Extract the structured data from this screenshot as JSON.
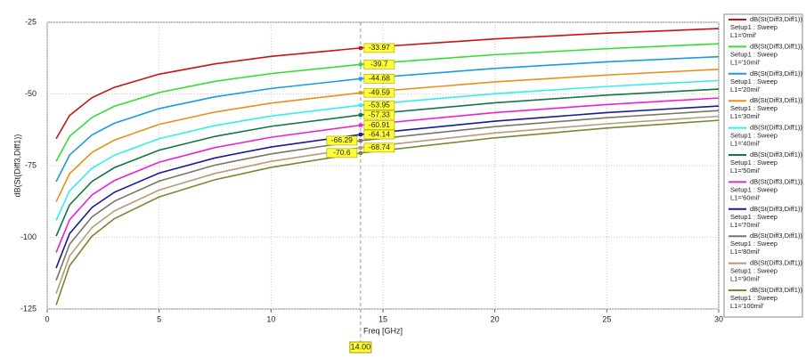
{
  "chart_data": {
    "type": "line",
    "x_label": "Freq [GHz]",
    "y_label": "dB(St(Diff3,Diff1))",
    "xlim": [
      0,
      30
    ],
    "xticks": [
      0,
      5,
      10,
      15,
      20,
      25,
      30
    ],
    "ylim": [
      -125,
      -25
    ],
    "yticks": [
      -125,
      -100,
      -75,
      -50,
      -25
    ],
    "grid": true,
    "legend": "right",
    "marker": {
      "value": 14,
      "label": "14.00"
    },
    "marker_index": 7,
    "x": [
      0.4,
      1,
      2,
      3,
      5,
      7.5,
      10,
      14,
      20,
      25,
      30
    ],
    "series": [
      {
        "name": "dB(St(Diff3,Diff1))",
        "setup": "Setup1 : Sweep",
        "variation": "L1='0mil'",
        "color": "#cc1111",
        "values": [
          -65.6,
          -57.5,
          -51.3,
          -47.7,
          -43.1,
          -39.5,
          -36.9,
          -33.97,
          -30.8,
          -28.8,
          -27.2
        ]
      },
      {
        "name": "dB(St(Diff3,Diff1))",
        "setup": "Setup1 : Sweep",
        "variation": "L1='10mil'",
        "color": "#33dd33",
        "values": [
          -73.5,
          -64.8,
          -58.2,
          -54.3,
          -49.5,
          -45.6,
          -42.9,
          -39.7,
          -36.3,
          -34.2,
          -32.5
        ]
      },
      {
        "name": "dB(St(Diff3,Diff1))",
        "setup": "Setup1 : Sweep",
        "variation": "L1='20mil'",
        "color": "#1a9be0",
        "values": [
          -80.6,
          -71.3,
          -64.3,
          -60.2,
          -55.1,
          -51.0,
          -48.1,
          -44.68,
          -41.1,
          -38.8,
          -37.0
        ]
      },
      {
        "name": "dB(St(Diff3,Diff1))",
        "setup": "Setup1 : Sweep",
        "variation": "L1='30mil'",
        "color": "#e8901c",
        "values": [
          -87.6,
          -77.8,
          -70.4,
          -66.1,
          -60.6,
          -56.3,
          -53.2,
          -49.59,
          -45.8,
          -43.4,
          -41.4
        ]
      },
      {
        "name": "dB(St(Diff3,Diff1))",
        "setup": "Setup1 : Sweep",
        "variation": "L1='40mil'",
        "color": "#33eeee",
        "values": [
          -94.1,
          -83.8,
          -75.9,
          -71.4,
          -65.6,
          -61.0,
          -57.7,
          -53.95,
          -49.9,
          -47.4,
          -45.3
        ]
      },
      {
        "name": "dB(St(Diff3,Diff1))",
        "setup": "Setup1 : Sweep",
        "variation": "L1='50mil'",
        "color": "#117744",
        "values": [
          -99.6,
          -88.7,
          -80.5,
          -75.7,
          -69.6,
          -64.8,
          -61.3,
          -57.33,
          -53.1,
          -50.4,
          -48.3
        ]
      },
      {
        "name": "dB(St(Diff3,Diff1))",
        "setup": "Setup1 : Sweep",
        "variation": "L1='60mil'",
        "color": "#ee22cc",
        "values": [
          -105.3,
          -93.9,
          -85.2,
          -80.2,
          -73.8,
          -68.7,
          -65.1,
          -60.91,
          -56.5,
          -53.7,
          -51.4
        ]
      },
      {
        "name": "dB(St(Diff3,Diff1))",
        "setup": "Setup1 : Sweep",
        "variation": "L1='70mil'",
        "color": "#1a1a99",
        "values": [
          -110.7,
          -98.7,
          -89.6,
          -84.3,
          -77.6,
          -72.3,
          -68.5,
          -64.14,
          -59.5,
          -56.5,
          -54.2
        ]
      },
      {
        "name": "dB(St(Diff3,Diff1))",
        "setup": "Setup1 : Sweep",
        "variation": "L1='80mil'",
        "color": "#777766",
        "values": [
          -115.0,
          -102.4,
          -92.9,
          -87.4,
          -80.4,
          -74.8,
          -70.9,
          -66.29,
          -61.4,
          -58.3,
          -55.8
        ]
      },
      {
        "name": "dB(St(Diff3,Diff1))",
        "setup": "Setup1 : Sweep",
        "variation": "L1='90mil'",
        "color": "#bb9977",
        "values": [
          -119.6,
          -106.5,
          -96.6,
          -90.8,
          -83.5,
          -77.7,
          -73.5,
          -68.74,
          -63.6,
          -60.4,
          -57.8
        ]
      },
      {
        "name": "dB(St(Diff3,Diff1))",
        "setup": "Setup1 : Sweep",
        "variation": "L1='100mil'",
        "color": "#778833",
        "values": [
          -123.6,
          -109.9,
          -99.6,
          -93.5,
          -85.9,
          -79.9,
          -75.6,
          -70.6,
          -65.3,
          -61.9,
          -59.2
        ]
      }
    ]
  }
}
